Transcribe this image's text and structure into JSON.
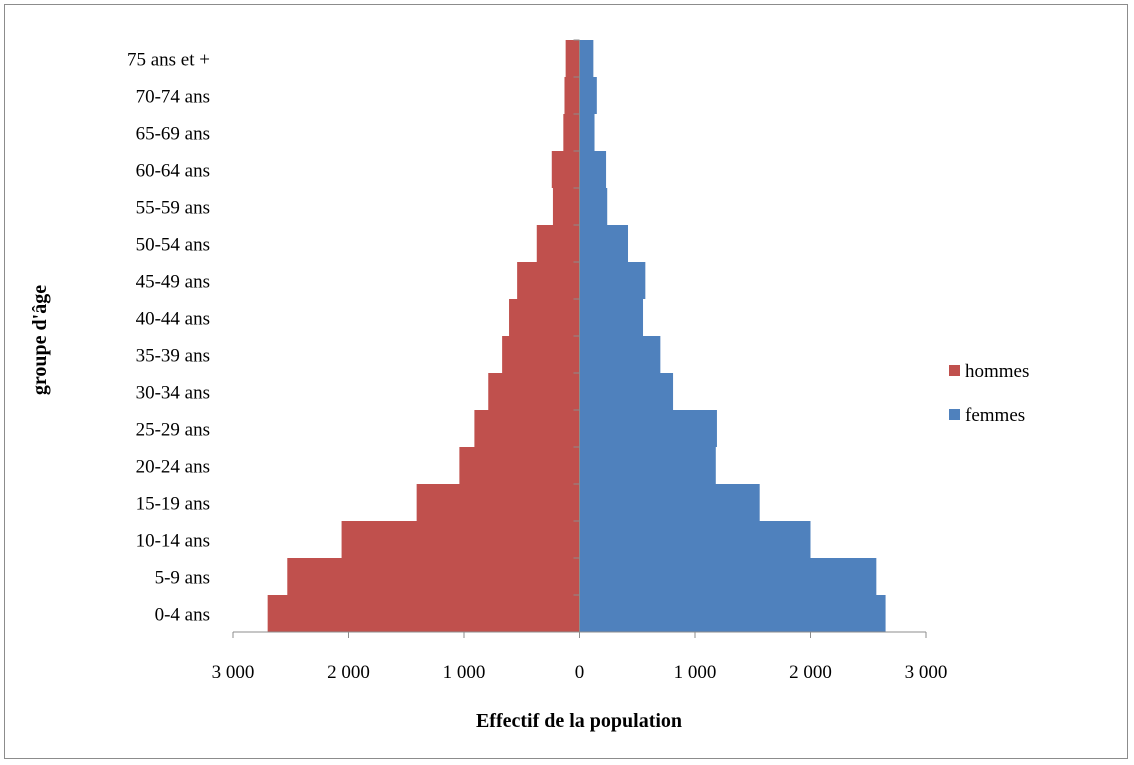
{
  "chart_data": {
    "type": "bar",
    "orientation": "horizontal",
    "layout": "population-pyramid",
    "title": "",
    "xlabel": "Effectif de la population",
    "ylabel": "groupe d'âge",
    "categories": [
      "0-4 ans",
      "5-9 ans",
      "10-14 ans",
      "15-19 ans",
      "20-24 ans",
      "25-29 ans",
      "30-34 ans",
      "35-39 ans",
      "40-44 ans",
      "45-49 ans",
      "50-54 ans",
      "55-59 ans",
      "60-64 ans",
      "65-69 ans",
      "70-74 ans",
      "75 ans et +"
    ],
    "series": [
      {
        "name": "hommes",
        "color": "#c0504d",
        "side": "left",
        "values": [
          2700,
          2530,
          2060,
          1410,
          1040,
          910,
          790,
          670,
          610,
          540,
          370,
          230,
          240,
          140,
          130,
          120
        ]
      },
      {
        "name": "femmes",
        "color": "#4f81bd",
        "side": "right",
        "values": [
          2650,
          2570,
          2000,
          1560,
          1180,
          1190,
          810,
          700,
          550,
          570,
          420,
          240,
          230,
          130,
          150,
          120
        ]
      }
    ],
    "xlim": [
      -3000,
      3000
    ],
    "x_ticks": [
      -3000,
      -2000,
      -1000,
      0,
      1000,
      2000,
      3000
    ],
    "x_tick_labels": [
      "3 000",
      "2 000",
      "1 000",
      "0",
      "1 000",
      "2 000",
      "3 000"
    ],
    "grid": false,
    "legend_position": "right"
  }
}
